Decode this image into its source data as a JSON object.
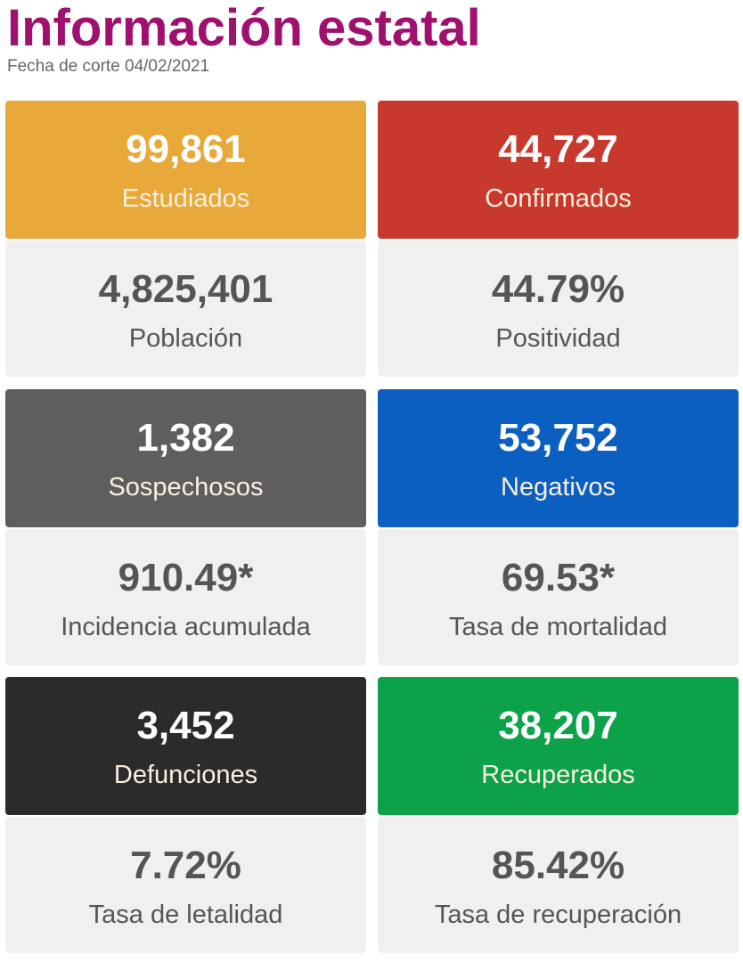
{
  "header": {
    "title": "Información estatal",
    "date": "Fecha de corte 04/02/2021"
  },
  "colors": {
    "title": "#a0106f",
    "estudiados": "#e8a93a",
    "confirmados": "#c8392d",
    "sospechosos": "#5e5e5e",
    "negativos": "#0b5fc0",
    "defunciones": "#2b2b2b",
    "recuperados": "#0ba24a"
  },
  "cards": [
    {
      "value": "99,861",
      "label": "Estudiados"
    },
    {
      "value": "44,727",
      "label": "Confirmados"
    },
    {
      "value": "4,825,401",
      "label": "Población"
    },
    {
      "value": "44.79%",
      "label": "Positividad"
    },
    {
      "value": "1,382",
      "label": "Sospechosos"
    },
    {
      "value": "53,752",
      "label": "Negativos"
    },
    {
      "value": "910.49*",
      "label": "Incidencia acumulada"
    },
    {
      "value": "69.53*",
      "label": "Tasa de mortalidad"
    },
    {
      "value": "3,452",
      "label": "Defunciones"
    },
    {
      "value": "38,207",
      "label": "Recuperados"
    },
    {
      "value": "7.72%",
      "label": "Tasa de letalidad"
    },
    {
      "value": "85.42%",
      "label": "Tasa de recuperación"
    }
  ]
}
